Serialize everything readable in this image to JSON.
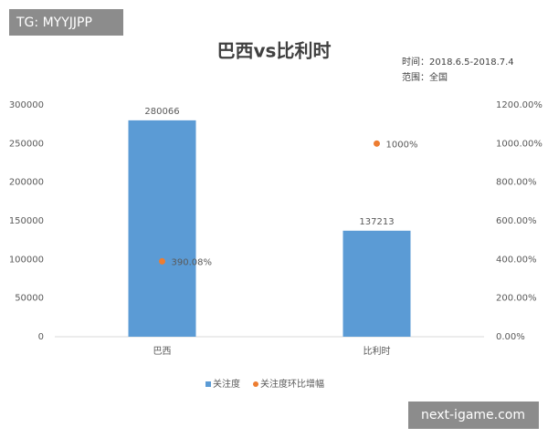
{
  "chart_data": {
    "type": "bar",
    "title": "巴西vs比利时",
    "subtitle": [
      "时间：2018.6.5-2018.7.4",
      "范围：全国"
    ],
    "categories": [
      "巴西",
      "比利时"
    ],
    "series": [
      {
        "name": "关注度",
        "color": "#5b9bd5",
        "values": [
          280066,
          137213
        ]
      },
      {
        "name": "关注度环比增幅",
        "color": "#ed7d31",
        "type": "scatter",
        "axis": "y2",
        "values": [
          390.08,
          1000
        ],
        "value_labels": [
          "390.08%",
          "1000%"
        ]
      }
    ],
    "ylim": [
      0,
      300000
    ],
    "yticks": [
      0,
      50000,
      100000,
      150000,
      200000,
      250000,
      300000
    ],
    "y2lim": [
      0,
      1200
    ],
    "y2ticks": [
      {
        "value": 0,
        "label": "0.00%"
      },
      {
        "value": 200,
        "label": "200.00%"
      },
      {
        "value": 400,
        "label": "400.00%"
      },
      {
        "value": 600,
        "label": "600.00%"
      },
      {
        "value": 800,
        "label": "800.00%"
      },
      {
        "value": 1000,
        "label": "1000.00%"
      },
      {
        "value": 1200,
        "label": "1200.00%"
      }
    ],
    "grid": false,
    "legend": "bottom"
  },
  "watermarks": [
    "TG: MYYJJPP",
    "next-igame.com"
  ]
}
